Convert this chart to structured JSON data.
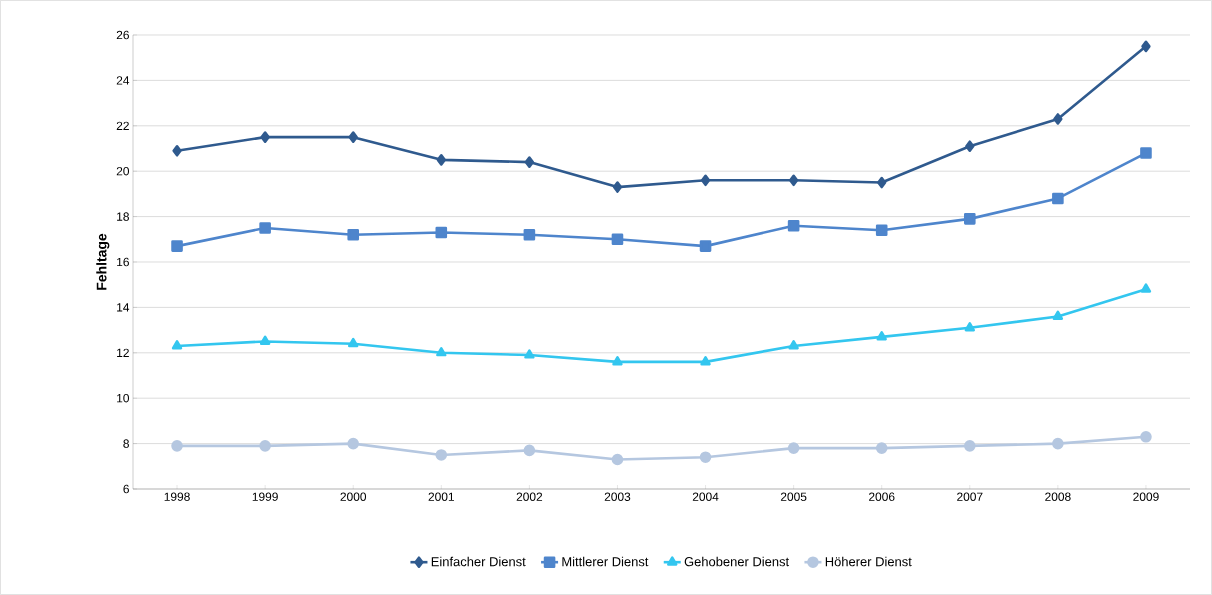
{
  "chart_data": {
    "type": "line",
    "ylabel": "Fehltage",
    "categories": [
      "1998",
      "1999",
      "2000",
      "2001",
      "2002",
      "2003",
      "2004",
      "2005",
      "2006",
      "2007",
      "2008",
      "2009"
    ],
    "series": [
      {
        "name": "Einfacher Dienst",
        "color": "#2f5a8e",
        "marker": "diamond",
        "values": [
          20.9,
          21.5,
          21.5,
          20.5,
          20.4,
          19.3,
          19.6,
          19.6,
          19.5,
          21.1,
          22.3,
          25.5
        ]
      },
      {
        "name": "Mittlerer Dienst",
        "color": "#4e85cc",
        "marker": "square",
        "values": [
          16.7,
          17.5,
          17.2,
          17.3,
          17.2,
          17.0,
          16.7,
          17.6,
          17.4,
          17.9,
          18.8,
          20.8
        ]
      },
      {
        "name": "Gehobener Dienst",
        "color": "#33c6ef",
        "marker": "triangle",
        "values": [
          12.3,
          12.5,
          12.4,
          12.0,
          11.9,
          11.6,
          11.6,
          12.3,
          12.7,
          13.1,
          13.6,
          14.8
        ]
      },
      {
        "name": "Höherer Dienst",
        "color": "#b5c7e0",
        "marker": "circle",
        "values": [
          7.9,
          7.9,
          8.0,
          7.5,
          7.7,
          7.3,
          7.4,
          7.8,
          7.8,
          7.9,
          8.0,
          8.3
        ]
      }
    ],
    "ylim": [
      6,
      26
    ],
    "yticks": [
      6,
      8,
      10,
      12,
      14,
      16,
      18,
      20,
      22,
      24,
      26
    ],
    "grid": "y",
    "legend": "bottom",
    "line_style": "solid"
  }
}
